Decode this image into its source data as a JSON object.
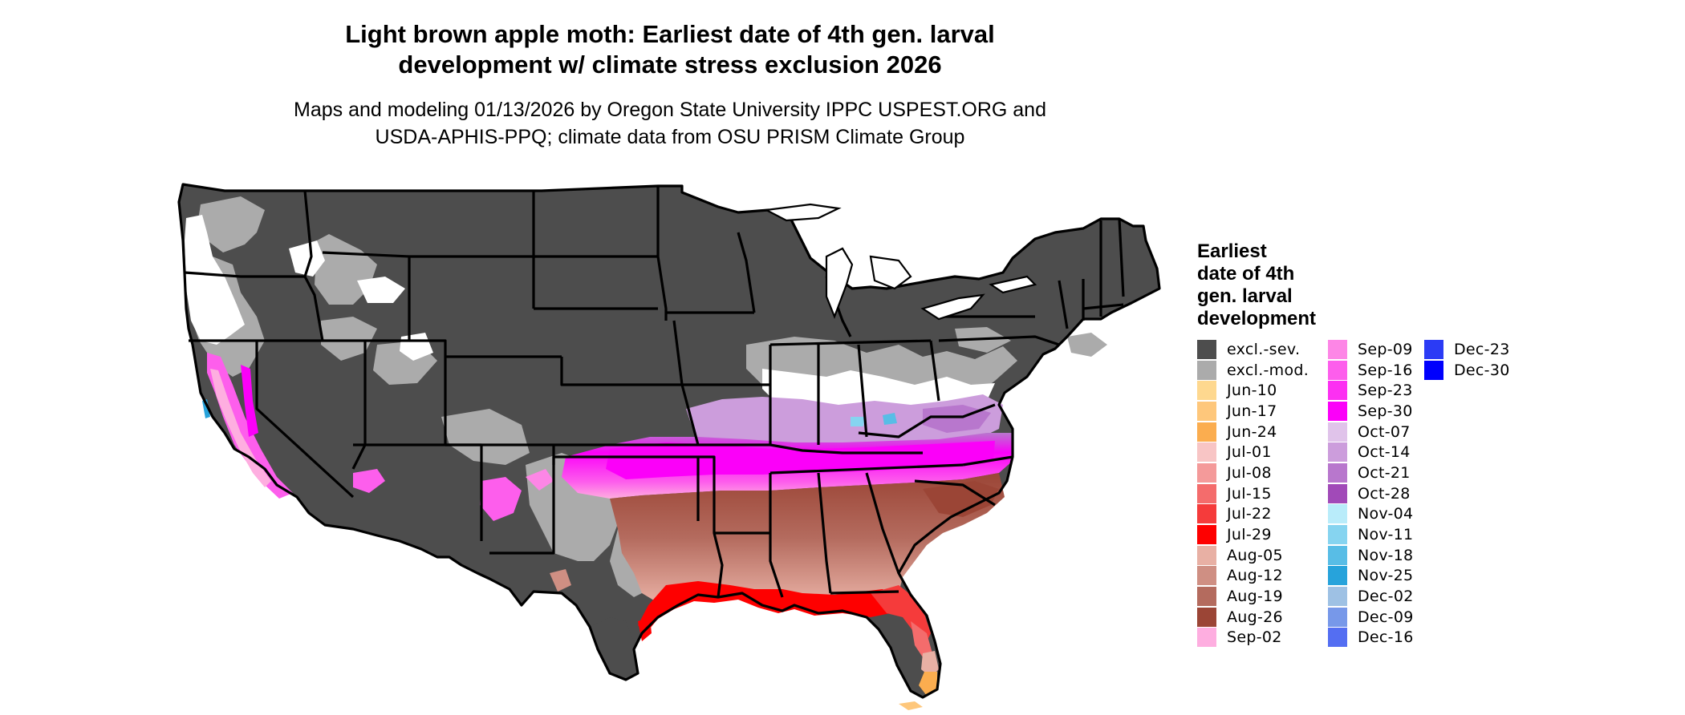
{
  "title": {
    "line1": "Light brown apple moth: Earliest date of 4th gen. larval",
    "line2": "development w/ climate stress exclusion 2026"
  },
  "subtitle": {
    "line1": "Maps and modeling 01/13/2026 by Oregon State University IPPC USPEST.ORG and",
    "line2": "USDA-APHIS-PPQ; climate data from OSU PRISM Climate Group"
  },
  "legend": {
    "title_lines": [
      "Earliest",
      "date of 4th",
      "gen. larval",
      "development"
    ],
    "columns": [
      [
        {
          "label": "excl.-sev.",
          "color": "#4d4d4d"
        },
        {
          "label": "excl.-mod.",
          "color": "#ababab"
        },
        {
          "label": "Jun-10",
          "color": "#fed88f"
        },
        {
          "label": "Jun-17",
          "color": "#fec77b"
        },
        {
          "label": "Jun-24",
          "color": "#fbad4f"
        },
        {
          "label": "Jul-01",
          "color": "#f8c5c5"
        },
        {
          "label": "Jul-08",
          "color": "#f49a9a"
        },
        {
          "label": "Jul-15",
          "color": "#f46c6c"
        },
        {
          "label": "Jul-22",
          "color": "#f53b3b"
        },
        {
          "label": "Jul-29",
          "color": "#fe0000"
        },
        {
          "label": "Aug-05",
          "color": "#e8b0a4"
        },
        {
          "label": "Aug-12",
          "color": "#cf8f83"
        },
        {
          "label": "Aug-19",
          "color": "#b46b5e"
        },
        {
          "label": "Aug-26",
          "color": "#9b4536"
        },
        {
          "label": "Sep-02",
          "color": "#feaee0"
        }
      ],
      [
        {
          "label": "Sep-09",
          "color": "#fd86e6"
        },
        {
          "label": "Sep-16",
          "color": "#fd5eec"
        },
        {
          "label": "Sep-23",
          "color": "#fc30f2"
        },
        {
          "label": "Sep-30",
          "color": "#fb00f9"
        },
        {
          "label": "Oct-07",
          "color": "#e0c3ea"
        },
        {
          "label": "Oct-14",
          "color": "#cc9ddc"
        },
        {
          "label": "Oct-21",
          "color": "#b877cd"
        },
        {
          "label": "Oct-28",
          "color": "#a14ab8"
        },
        {
          "label": "Nov-04",
          "color": "#b9ecfa"
        },
        {
          "label": "Nov-11",
          "color": "#86d4f0"
        },
        {
          "label": "Nov-18",
          "color": "#58bde6"
        },
        {
          "label": "Nov-25",
          "color": "#27a3db"
        },
        {
          "label": "Dec-02",
          "color": "#9ec1e4"
        },
        {
          "label": "Dec-09",
          "color": "#7798e9"
        },
        {
          "label": "Dec-16",
          "color": "#546ef2"
        }
      ],
      [
        {
          "label": "Dec-23",
          "color": "#2b3bf5"
        },
        {
          "label": "Dec-30",
          "color": "#0000fd"
        }
      ]
    ]
  }
}
